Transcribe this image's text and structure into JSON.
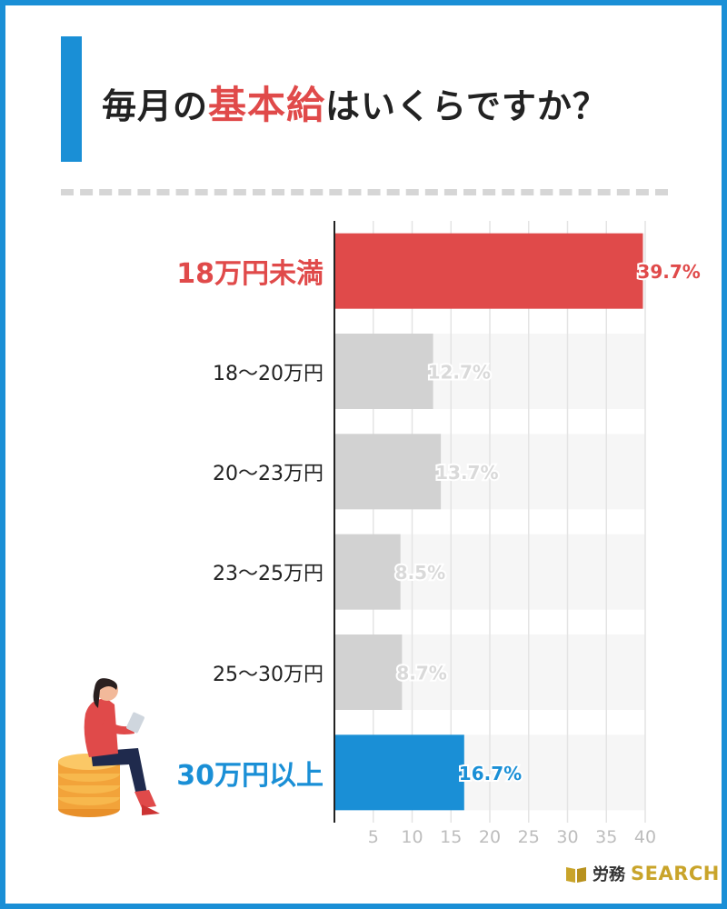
{
  "title": {
    "before": "毎月の",
    "highlight": "基本給",
    "after": "はいくらですか？"
  },
  "logo": {
    "jp": "労務",
    "en": "SEARCH"
  },
  "colors": {
    "accent_blue": "#1a8fd6",
    "accent_red": "#e04a4a",
    "bar_gray": "#d2d2d2",
    "logo_gold": "#c9a42a"
  },
  "chart_data": {
    "type": "bar",
    "orientation": "horizontal",
    "categories": [
      "18万円未満",
      "18〜20万円",
      "20〜23万円",
      "23〜25万円",
      "25〜30万円",
      "30万円以上"
    ],
    "values": [
      39.7,
      12.7,
      13.7,
      8.5,
      8.7,
      16.7
    ],
    "value_labels": [
      "39.7%",
      "12.7%",
      "13.7%",
      "8.5%",
      "8.7%",
      "16.7%"
    ],
    "highlight": [
      "red",
      "none",
      "none",
      "none",
      "none",
      "blue"
    ],
    "xlim": [
      0,
      40
    ],
    "xticks": [
      5,
      10,
      15,
      20,
      25,
      30,
      35,
      40
    ],
    "grid": true
  }
}
